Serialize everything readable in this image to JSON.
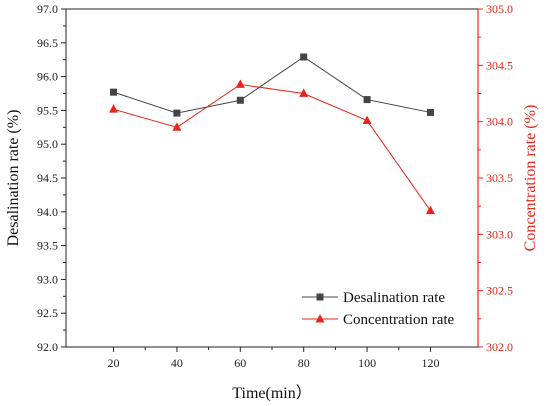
{
  "chart_data": {
    "type": "line",
    "x": [
      20,
      40,
      60,
      80,
      100,
      120
    ],
    "xticks": [
      20,
      40,
      60,
      80,
      100,
      120
    ],
    "xlim": [
      5,
      135
    ],
    "xlabel": "Time(min）",
    "y_left": {
      "label": "Desalination rate (%)",
      "lim": [
        92.0,
        97.0
      ],
      "ticks": [
        "92.0",
        "92.5",
        "93.0",
        "93.5",
        "94.0",
        "94.5",
        "95.0",
        "95.5",
        "96.0",
        "96.5",
        "97.0"
      ]
    },
    "y_right": {
      "label": "Concentration rate (%)",
      "lim": [
        302.0,
        305.0
      ],
      "ticks": [
        "302.0",
        "302.5",
        "303.0",
        "303.5",
        "304.0",
        "304.5",
        "305.0"
      ]
    },
    "series": [
      {
        "name": "Desalination rate",
        "axis": "left",
        "marker": "square",
        "color": "#444444",
        "values": [
          95.77,
          95.46,
          95.65,
          96.29,
          95.66,
          95.47
        ]
      },
      {
        "name": "Concentration rate",
        "axis": "right",
        "marker": "triangle",
        "color": "#e8251a",
        "values": [
          304.11,
          303.95,
          304.33,
          304.25,
          304.01,
          303.21
        ]
      }
    ],
    "legend": "bottom-right",
    "grid": false
  }
}
